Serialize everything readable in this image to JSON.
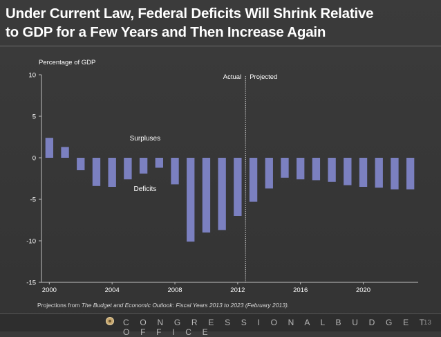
{
  "slide": {
    "title_line1": "Under Current Law, Federal Deficits Will Shrink Relative",
    "title_line2": "to GDP for a Few Years and Then Increase Again",
    "source_prefix": "Projections from ",
    "source_italic": "The Budget and Economic Outlook: Fiscal Years 2013 to 2023 (February 2013).",
    "organization": "C O N G R E S S I O N A L   B U D G E T   O F F I C E",
    "page_number": "13"
  },
  "colors": {
    "bar": "#7b80c0",
    "axis": "#bfbfbf",
    "text": "#ffffff"
  },
  "chart_data": {
    "type": "bar",
    "title": "",
    "ylabel": "Percentage of GDP",
    "xlabel": "",
    "ylim": [
      -15,
      10
    ],
    "yticks": [
      10,
      5,
      0,
      -5,
      -10,
      -15
    ],
    "xticks": [
      "2000",
      "2004",
      "2008",
      "2012",
      "2016",
      "2020"
    ],
    "categories": [
      "2000",
      "2001",
      "2002",
      "2003",
      "2004",
      "2005",
      "2006",
      "2007",
      "2008",
      "2009",
      "2010",
      "2011",
      "2012",
      "2013",
      "2014",
      "2015",
      "2016",
      "2017",
      "2018",
      "2019",
      "2020",
      "2021",
      "2022",
      "2023"
    ],
    "values": [
      2.4,
      1.3,
      -1.5,
      -3.4,
      -3.5,
      -2.6,
      -1.9,
      -1.2,
      -3.2,
      -10.1,
      -9.0,
      -8.7,
      -7.0,
      -5.3,
      -3.7,
      -2.4,
      -2.6,
      -2.7,
      -2.9,
      -3.3,
      -3.5,
      -3.6,
      -3.8,
      -3.8
    ],
    "annotations": {
      "actual": "Actual",
      "projected": "Projected",
      "surpluses": "Surpluses",
      "deficits": "Deficits"
    }
  }
}
